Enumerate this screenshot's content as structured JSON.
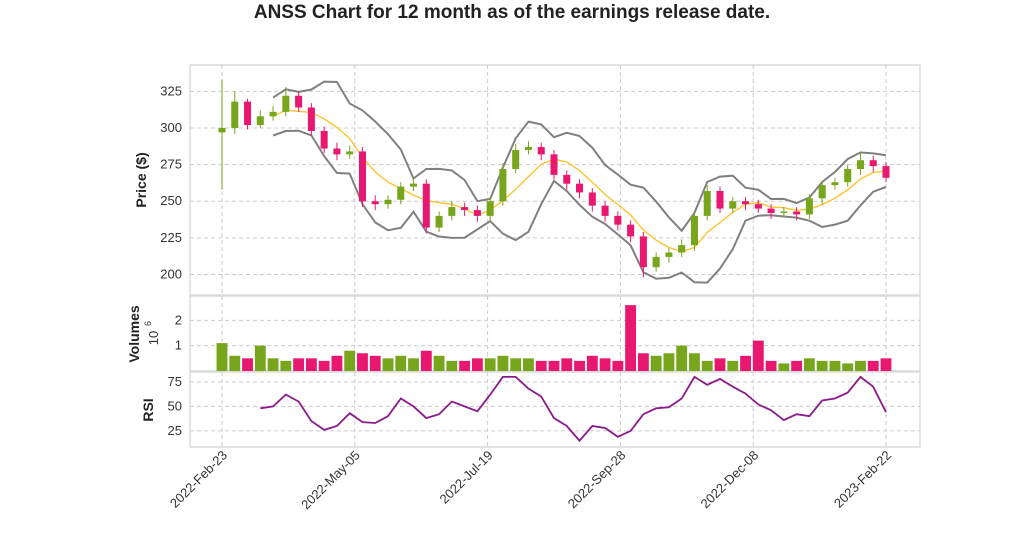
{
  "chart_data": {
    "type": "candlestick",
    "title": "ANSS Chart for 12 month as of the earnings release date.",
    "colors": {
      "up": "#77a51b",
      "down": "#e8176f",
      "bollinger": "#808080",
      "sma": "#ffc125",
      "rsi": "#8b1a8b",
      "grid": "#cccccc"
    },
    "grid": true,
    "x_ticks": [
      "2022-Feb-23",
      "2022-May-05",
      "2022-Jul-19",
      "2022-Sep-28",
      "2022-Dec-08",
      "2023-Feb-22"
    ],
    "price_panel": {
      "ylabel": "Price ($)",
      "ylim": [
        186,
        343
      ],
      "yticks": [
        200,
        225,
        250,
        275,
        300,
        325
      ],
      "open": [
        297,
        300,
        318,
        302,
        308,
        311,
        322,
        314,
        298,
        286,
        282,
        284,
        250,
        248,
        251,
        260,
        262,
        232,
        240,
        246,
        244,
        240,
        250,
        272,
        285,
        287,
        282,
        268,
        262,
        256,
        247,
        240,
        234,
        226,
        205,
        212,
        215,
        220,
        240,
        257,
        245,
        250,
        248,
        245,
        242,
        243,
        241,
        252,
        261,
        263,
        272,
        278,
        274
      ],
      "high": [
        333,
        325,
        320,
        312,
        315,
        328,
        325,
        317,
        301,
        290,
        288,
        287,
        254,
        254,
        263,
        266,
        265,
        243,
        250,
        249,
        247,
        253,
        276,
        289,
        291,
        290,
        285,
        271,
        265,
        259,
        250,
        243,
        237,
        229,
        215,
        218,
        224,
        243,
        261,
        260,
        253,
        253,
        251,
        248,
        246,
        246,
        255,
        264,
        266,
        275,
        284,
        281,
        277
      ],
      "low": [
        258,
        296,
        299,
        300,
        305,
        308,
        311,
        295,
        283,
        278,
        279,
        246,
        244,
        245,
        248,
        257,
        228,
        229,
        237,
        240,
        236,
        236,
        247,
        269,
        282,
        278,
        265,
        258,
        252,
        243,
        236,
        230,
        222,
        198,
        202,
        208,
        212,
        216,
        237,
        242,
        242,
        244,
        242,
        238,
        239,
        237,
        238,
        248,
        258,
        260,
        268,
        270,
        263
      ],
      "close": [
        300,
        318,
        302,
        308,
        311,
        322,
        314,
        298,
        286,
        282,
        284,
        250,
        248,
        251,
        260,
        262,
        232,
        240,
        246,
        244,
        240,
        250,
        272,
        285,
        287,
        282,
        268,
        262,
        256,
        247,
        240,
        234,
        226,
        205,
        212,
        215,
        220,
        240,
        257,
        245,
        250,
        248,
        245,
        242,
        243,
        241,
        252,
        261,
        263,
        272,
        278,
        274,
        266
      ],
      "overlays": [
        "Bollinger Bands",
        "SMA"
      ]
    },
    "volume_panel": {
      "ylabel": "Volumes",
      "scale_label": "10",
      "scale_exp": "6",
      "ylim": [
        0,
        2.96
      ],
      "yticks": [
        1,
        2
      ],
      "values": [
        1.1,
        0.6,
        0.5,
        1.0,
        0.5,
        0.4,
        0.5,
        0.5,
        0.4,
        0.6,
        0.8,
        0.7,
        0.6,
        0.5,
        0.6,
        0.5,
        0.8,
        0.6,
        0.4,
        0.4,
        0.5,
        0.5,
        0.6,
        0.5,
        0.5,
        0.4,
        0.4,
        0.5,
        0.4,
        0.6,
        0.5,
        0.4,
        2.6,
        0.7,
        0.6,
        0.7,
        1.0,
        0.7,
        0.4,
        0.5,
        0.4,
        0.6,
        1.2,
        0.4,
        0.3,
        0.4,
        0.5,
        0.4,
        0.4,
        0.3,
        0.4,
        0.4,
        0.5
      ]
    },
    "rsi_panel": {
      "ylabel": "RSI",
      "ylim": [
        8.6,
        85
      ],
      "yticks": [
        25,
        50,
        75
      ],
      "values": [
        null,
        null,
        null,
        48,
        50,
        62,
        55,
        35,
        26,
        30,
        43,
        34,
        33,
        40,
        58,
        50,
        38,
        42,
        55,
        50,
        45,
        62,
        80,
        80,
        68,
        60,
        38,
        30,
        15,
        30,
        28,
        19,
        25,
        42,
        48,
        49,
        58,
        80,
        72,
        78,
        70,
        63,
        52,
        46,
        36,
        42,
        40,
        56,
        58,
        64,
        80,
        70,
        44
      ]
    }
  }
}
